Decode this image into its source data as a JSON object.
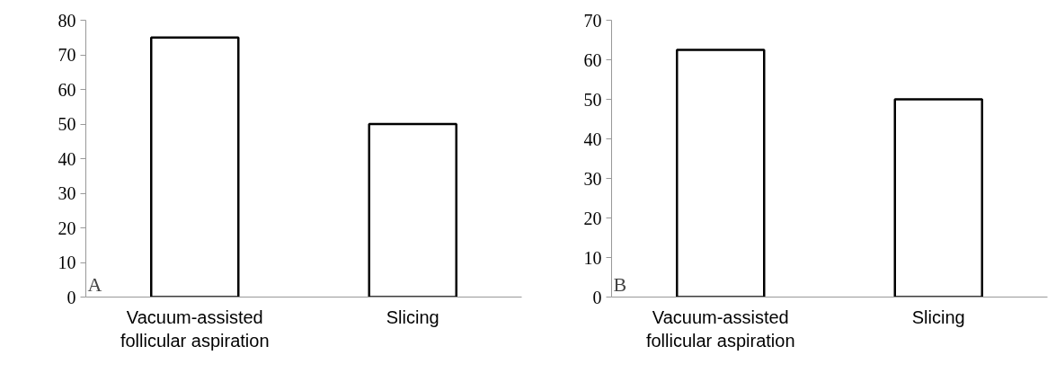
{
  "chart_data": [
    {
      "type": "bar",
      "categories": [
        "Vacuum-assisted\nfollicular aspiration",
        "Slicing"
      ],
      "values": [
        75,
        50
      ],
      "color": "#ffffff",
      "ylim": [
        0,
        80
      ],
      "yticks": [
        0,
        10,
        20,
        30,
        40,
        50,
        60,
        70,
        80
      ],
      "grid": false,
      "annotations": [
        "A"
      ]
    },
    {
      "type": "bar",
      "categories": [
        "Vacuum-assisted\nfollicular aspiration",
        "Slicing"
      ],
      "values": [
        62.5,
        50
      ],
      "color": "#ffffff",
      "ylim": [
        0,
        70
      ],
      "yticks": [
        0,
        10,
        20,
        30,
        40,
        50,
        60,
        70
      ],
      "grid": false,
      "annotations": [
        "B"
      ]
    }
  ]
}
